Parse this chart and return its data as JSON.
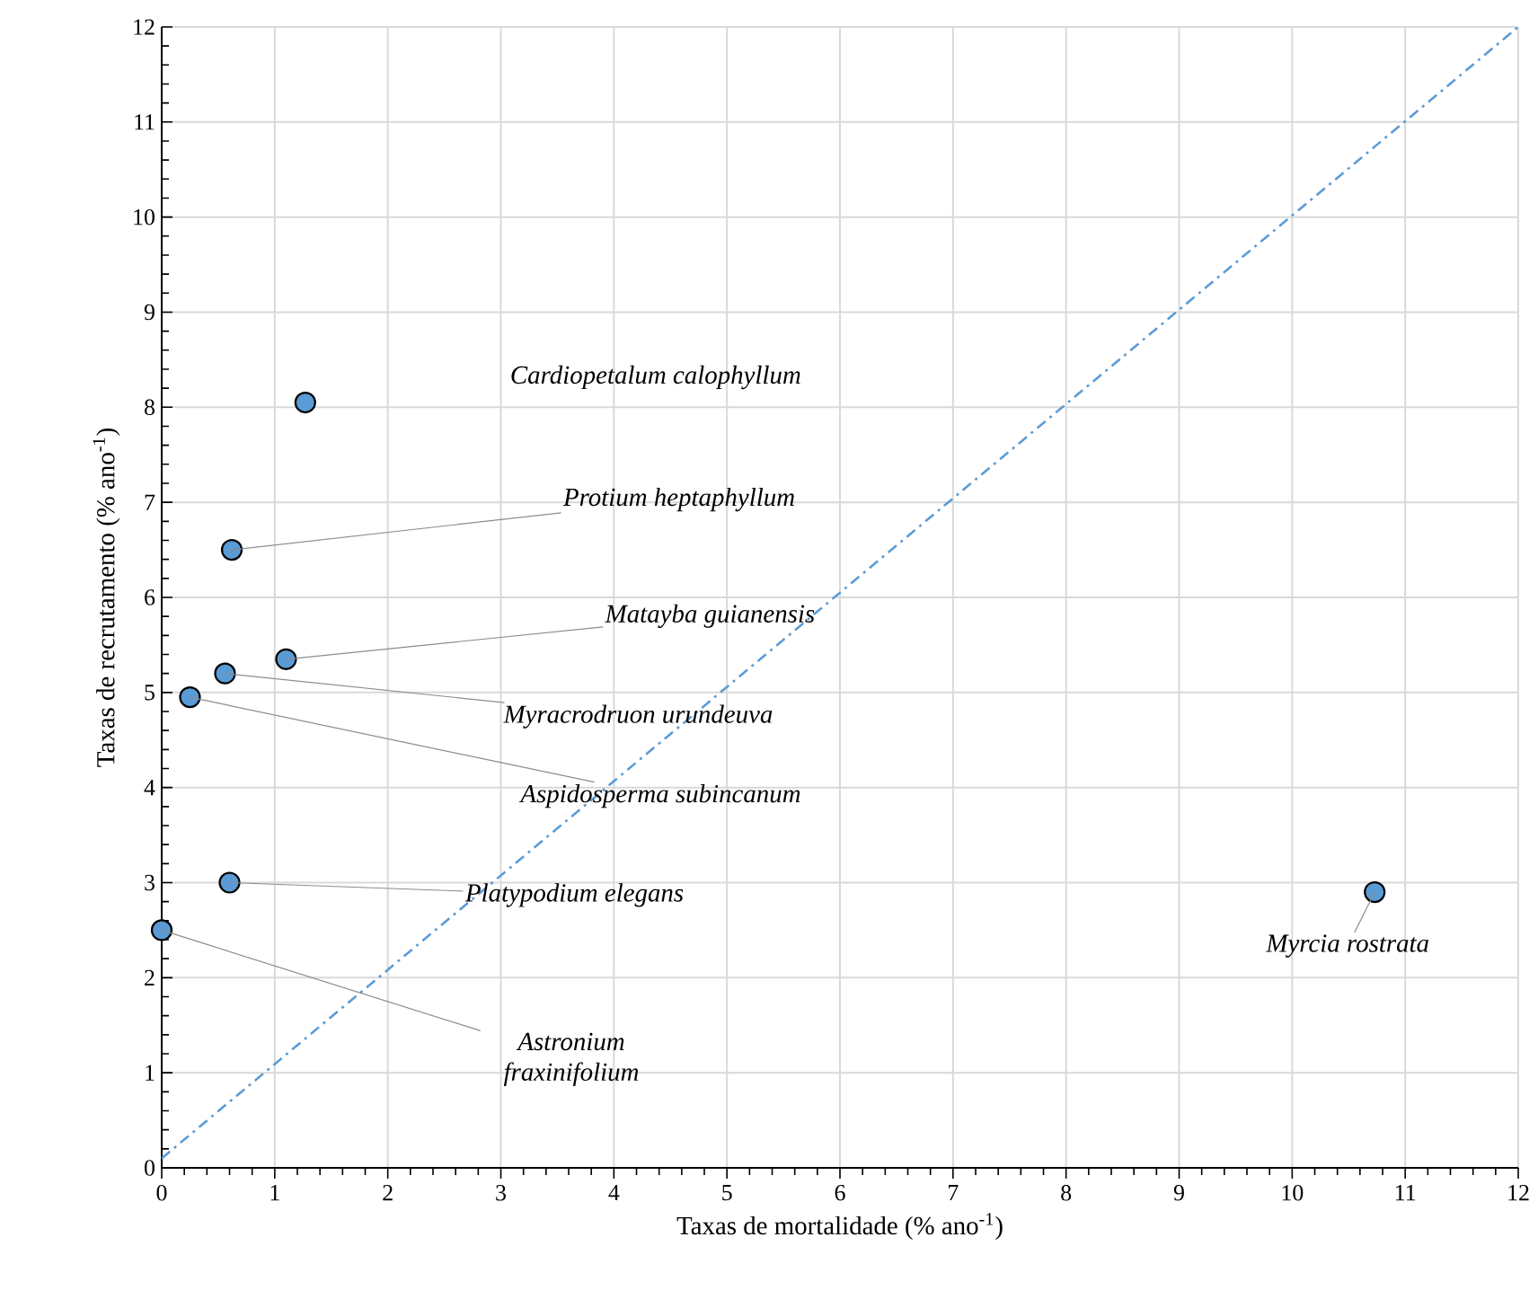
{
  "chart_data": {
    "type": "scatter",
    "xlabel": "Taxas de mortalidade (% ano$^{-1}$)",
    "ylabel": "Taxas de recrutamento (% ano$^{-1}$)",
    "xlim": [
      0,
      12
    ],
    "ylim": [
      0,
      12
    ],
    "xticks": [
      0,
      1,
      2,
      3,
      4,
      5,
      6,
      7,
      8,
      9,
      10,
      11,
      12
    ],
    "yticks": [
      0,
      1,
      2,
      3,
      4,
      5,
      6,
      7,
      8,
      9,
      10,
      11,
      12
    ],
    "grid": true,
    "series": [
      {
        "type": "scatter",
        "color": "#5b9bd5",
        "marker": "circle",
        "x": [
          1.27,
          0.62,
          1.1,
          0.56,
          0.25,
          0.6,
          0,
          10.73
        ],
        "values": [
          8.05,
          6.5,
          5.35,
          5.2,
          4.95,
          3.0,
          2.5,
          2.9
        ]
      },
      {
        "type": "line",
        "color": "#5b9bd5",
        "line_style": "dashdot",
        "marker": "none",
        "x": [
          0,
          12
        ],
        "values": [
          0.1,
          12
        ]
      }
    ],
    "annotations": [
      "Cardiopetalum calophyllum",
      {
        "text": "Protium heptaphyllum",
        "x": 0.62,
        "y": 6.5
      },
      {
        "text": "Matayba guianensis",
        "x": 1.1,
        "y": 5.35
      },
      {
        "text": "Myracrodruon urundeuva",
        "x": 0.56,
        "y": 5.2
      },
      {
        "text": "Aspidosperma subincanum",
        "x": 0.25,
        "y": 4.95
      },
      {
        "text": "Platypodium elegans",
        "x": 0.6,
        "y": 3.0
      },
      {
        "text": "Astronium fraxinifolium",
        "x": 0,
        "y": 2.5
      },
      {
        "text": "Myrcia rostrata",
        "x": 10.73,
        "y": 2.9
      }
    ]
  }
}
